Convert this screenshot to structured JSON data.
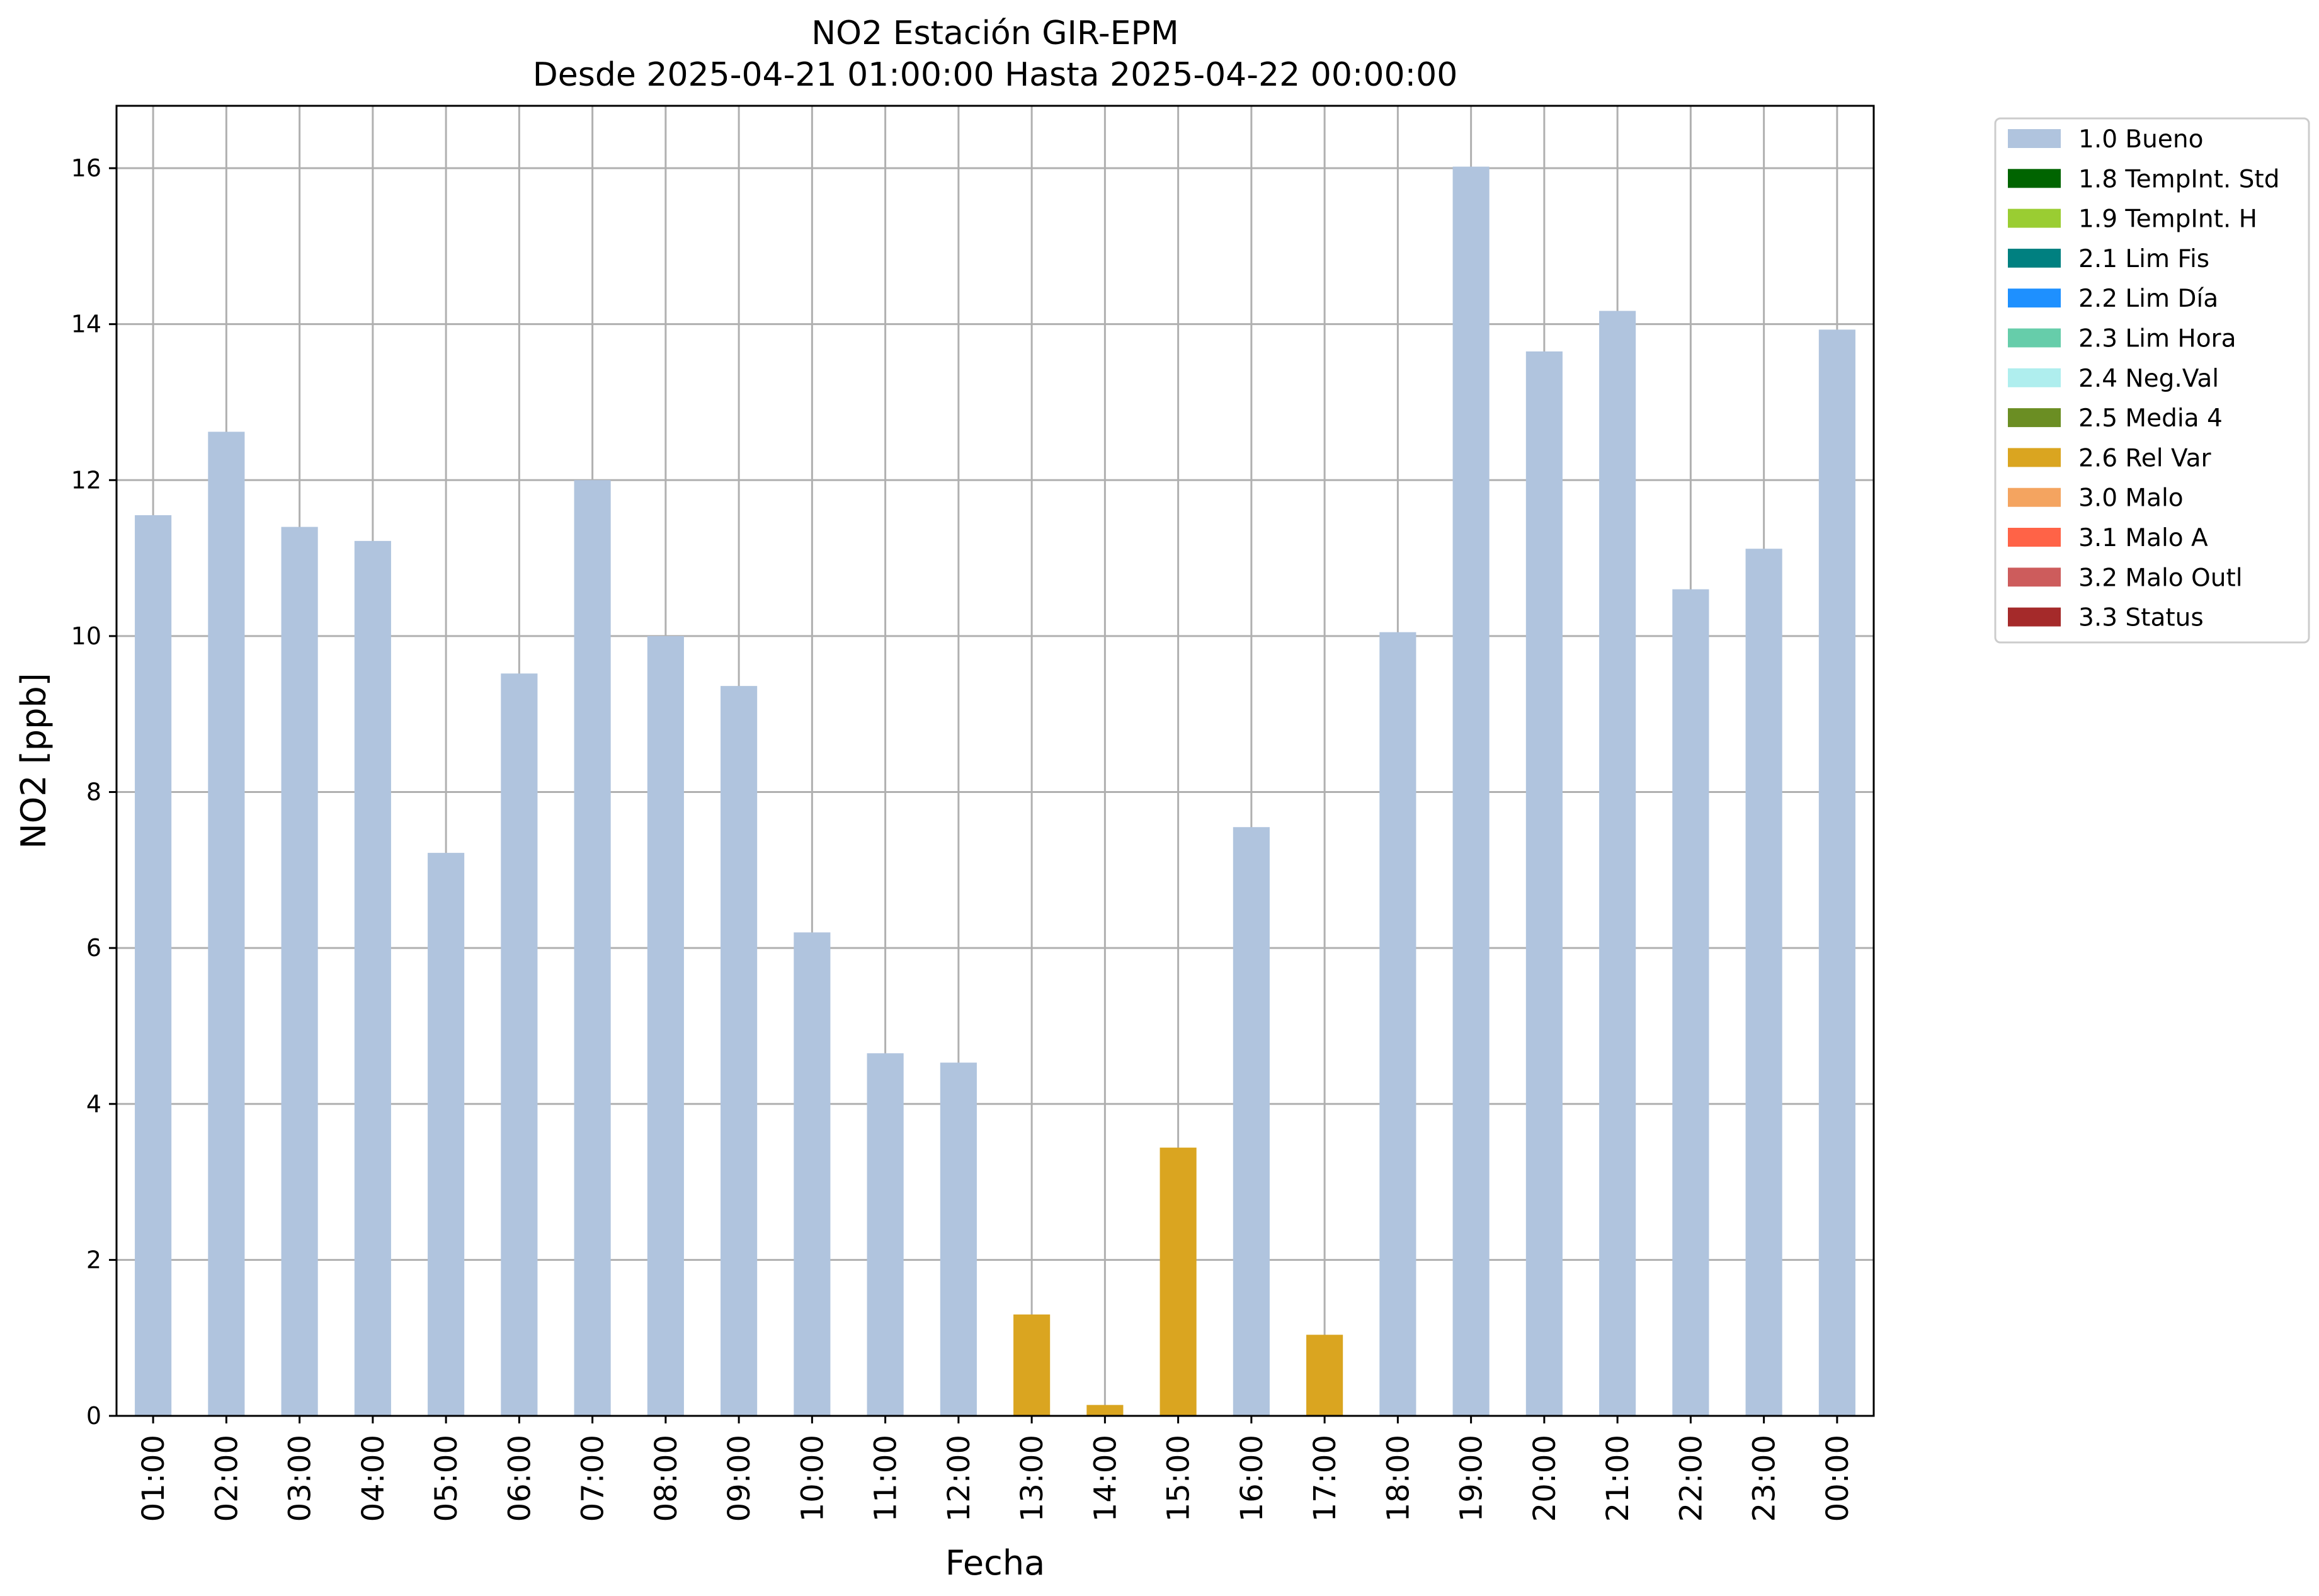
{
  "chart_data": {
    "type": "bar",
    "title": "NO2 Estación GIR-EPM",
    "subtitle": "Desde 2025-04-21 01:00:00 Hasta 2025-04-22 00:00:00",
    "xlabel": "Fecha",
    "ylabel": "NO2 [ppb]",
    "ylim": [
      0,
      16.8
    ],
    "yticks": [
      0,
      2,
      4,
      6,
      8,
      10,
      12,
      14,
      16
    ],
    "grid": true,
    "legend_position": "outside upper right",
    "categories": [
      "01:00",
      "02:00",
      "03:00",
      "04:00",
      "05:00",
      "06:00",
      "07:00",
      "08:00",
      "09:00",
      "10:00",
      "11:00",
      "12:00",
      "13:00",
      "14:00",
      "15:00",
      "16:00",
      "17:00",
      "18:00",
      "19:00",
      "20:00",
      "21:00",
      "22:00",
      "23:00",
      "00:00"
    ],
    "values": [
      11.55,
      12.62,
      11.4,
      11.22,
      7.22,
      9.52,
      12.0,
      10.0,
      9.36,
      6.2,
      4.65,
      4.53,
      1.3,
      0.14,
      3.44,
      7.55,
      1.04,
      10.05,
      16.02,
      13.65,
      14.17,
      10.6,
      11.12,
      13.93
    ],
    "flags": [
      "1.0 Bueno",
      "1.0 Bueno",
      "1.0 Bueno",
      "1.0 Bueno",
      "1.0 Bueno",
      "1.0 Bueno",
      "1.0 Bueno",
      "1.0 Bueno",
      "1.0 Bueno",
      "1.0 Bueno",
      "1.0 Bueno",
      "1.0 Bueno",
      "2.6 Rel Var",
      "2.6 Rel Var",
      "2.6 Rel Var",
      "1.0 Bueno",
      "2.6 Rel Var",
      "1.0 Bueno",
      "1.0 Bueno",
      "1.0 Bueno",
      "1.0 Bueno",
      "1.0 Bueno",
      "1.0 Bueno",
      "1.0 Bueno"
    ],
    "legend": [
      {
        "label": "1.0 Bueno",
        "color": "#b0c4de"
      },
      {
        "label": "1.8 TempInt. Std",
        "color": "#006400"
      },
      {
        "label": "1.9 TempInt. H",
        "color": "#9acd32"
      },
      {
        "label": "2.1 Lim Fis",
        "color": "#008080"
      },
      {
        "label": "2.2 Lim Día",
        "color": "#1e90ff"
      },
      {
        "label": "2.3 Lim Hora",
        "color": "#66cdaa"
      },
      {
        "label": "2.4 Neg.Val",
        "color": "#afeeee"
      },
      {
        "label": "2.5 Media 4",
        "color": "#6b8e23"
      },
      {
        "label": "2.6 Rel Var",
        "color": "#daa520"
      },
      {
        "label": "3.0 Malo",
        "color": "#f4a460"
      },
      {
        "label": "3.1 Malo A",
        "color": "#ff6347"
      },
      {
        "label": "3.2 Malo Outl",
        "color": "#cd5c5c"
      },
      {
        "label": "3.3 Status",
        "color": "#a52a2a"
      }
    ]
  }
}
